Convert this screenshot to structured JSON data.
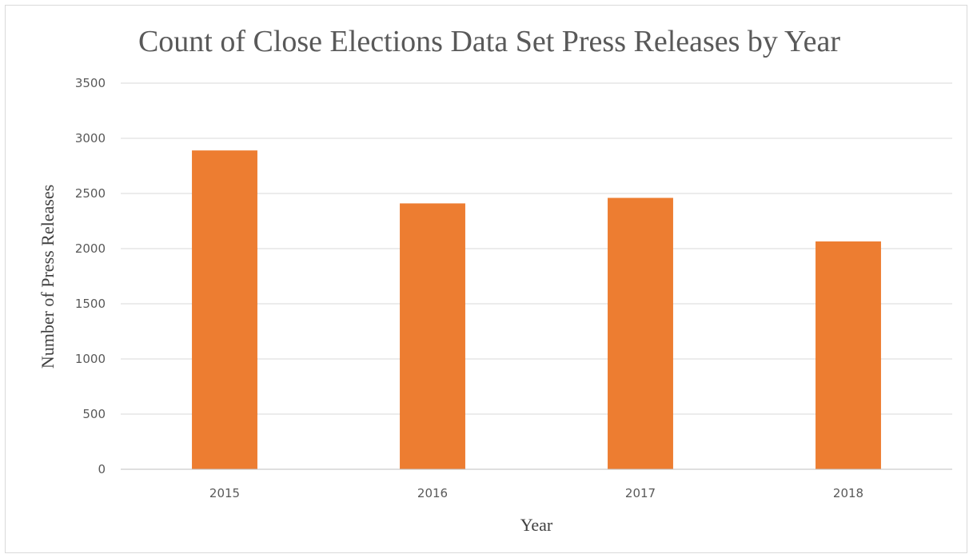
{
  "chart_data": {
    "type": "bar",
    "title": "Count of Close Elections Data Set Press Releases by Year",
    "xlabel": "Year",
    "ylabel": "Number of Press Releases",
    "categories": [
      "2015",
      "2016",
      "2017",
      "2018"
    ],
    "values": [
      2890,
      2410,
      2460,
      2065
    ],
    "ylim": [
      0,
      3500
    ],
    "yticks": [
      "0",
      "500",
      "1000",
      "1500",
      "2000",
      "2500",
      "3000",
      "3500"
    ],
    "bar_color": "#ed7d31",
    "grid": true,
    "legend": "none"
  }
}
